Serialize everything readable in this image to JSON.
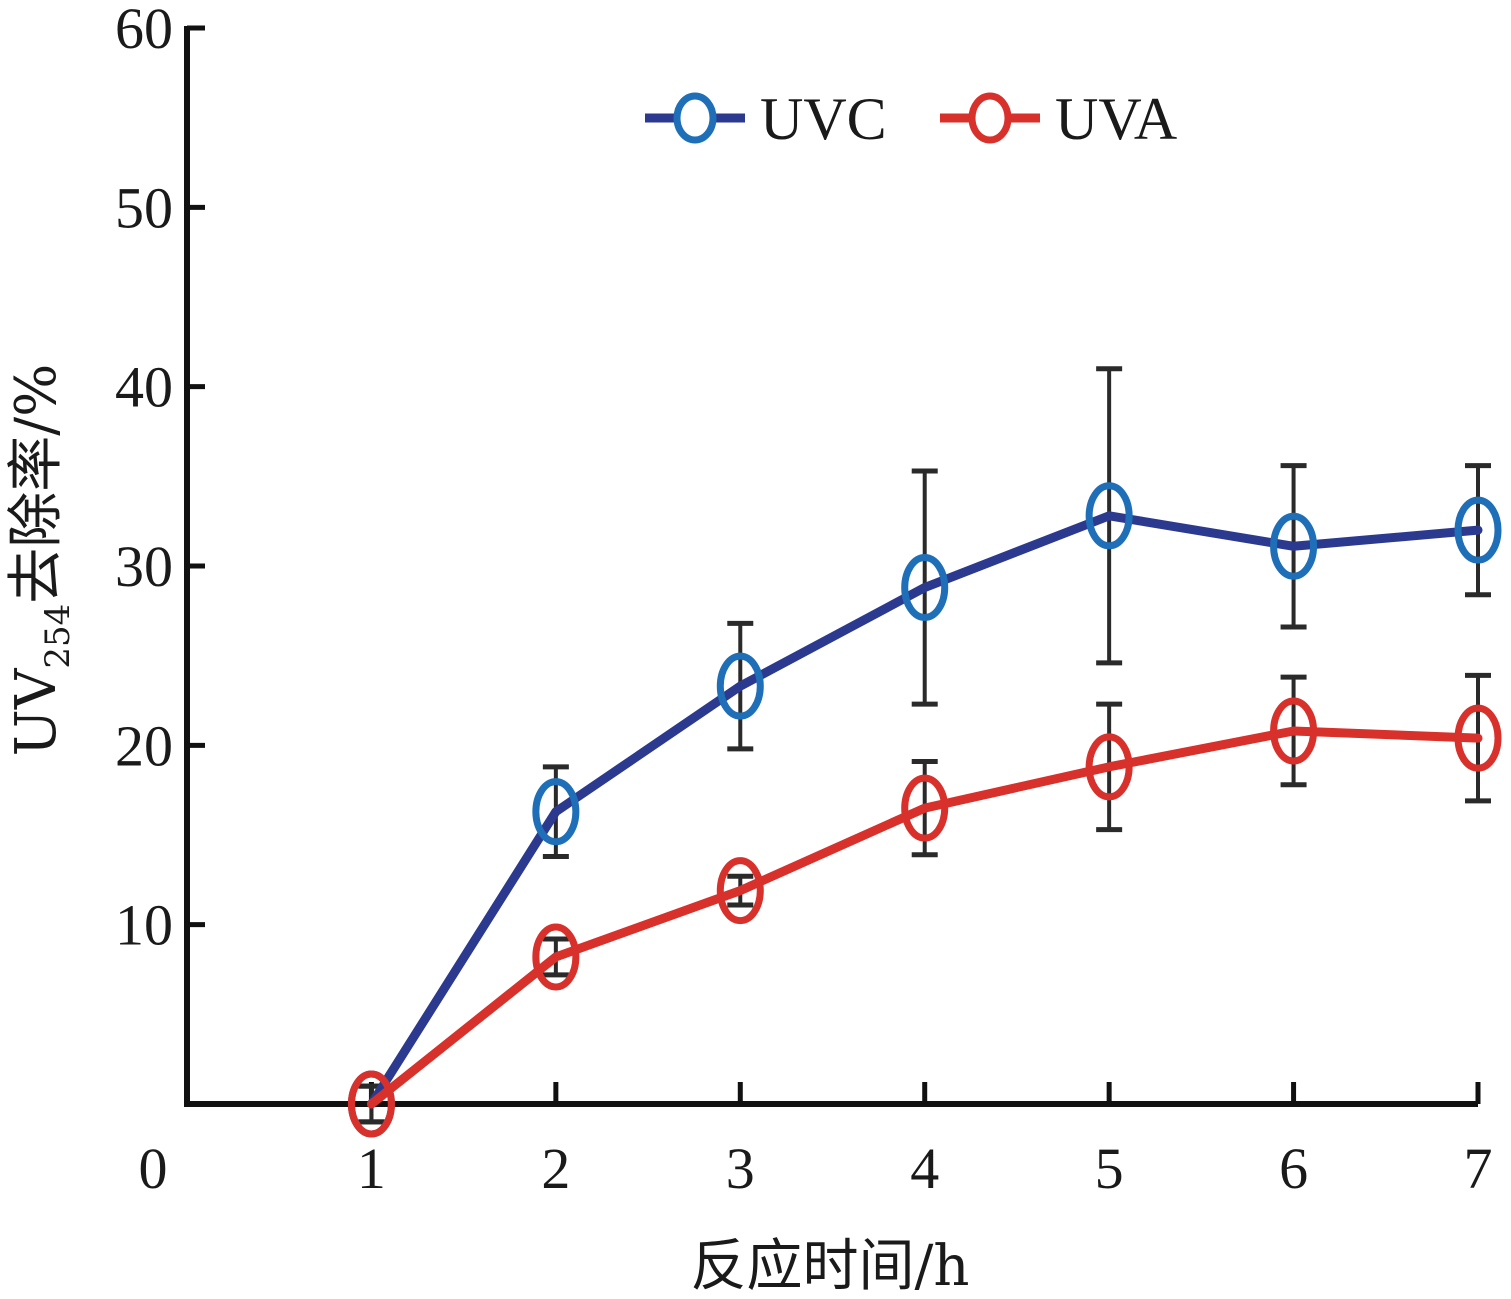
{
  "chart_data": {
    "type": "line",
    "x": [
      1,
      2,
      3,
      4,
      5,
      6,
      7
    ],
    "xlim": [
      0,
      7
    ],
    "ylim": [
      0,
      60
    ],
    "xticks": [
      0,
      1,
      2,
      3,
      4,
      5,
      6,
      7
    ],
    "yticks": [
      10,
      20,
      30,
      40,
      50,
      60
    ],
    "xlabel": "反应时间/h",
    "ylabel_main": "UV",
    "ylabel_sub": "254",
    "ylabel_tail": "去除率/%",
    "grid": false,
    "legend_position": "top-right",
    "series": [
      {
        "name": "UVC",
        "color": "#2b3a8f",
        "marker_color": "#1e6fb8",
        "values": [
          0,
          16.3,
          23.3,
          28.8,
          32.8,
          31.1,
          32.0
        ],
        "error": [
          1.0,
          2.5,
          3.5,
          6.5,
          8.2,
          4.5,
          3.6
        ]
      },
      {
        "name": "UVA",
        "color": "#d8302a",
        "marker_color": "#d8302a",
        "values": [
          0,
          8.2,
          11.9,
          16.5,
          18.8,
          20.8,
          20.4
        ],
        "error": [
          1.0,
          1.0,
          0.8,
          2.6,
          3.5,
          3.0,
          3.5
        ]
      }
    ]
  }
}
